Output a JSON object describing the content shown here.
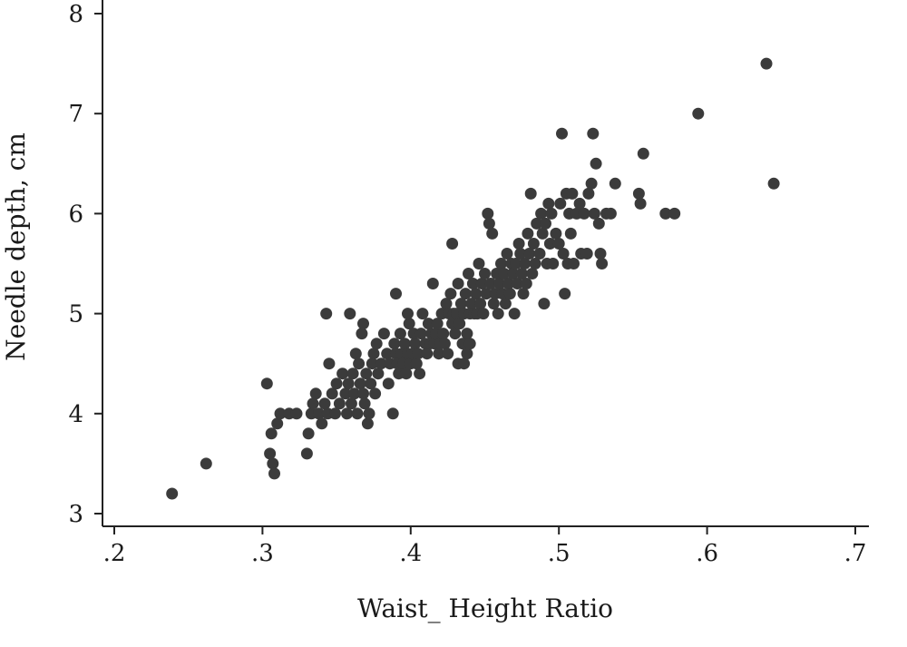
{
  "chart_data": {
    "type": "scatter",
    "title": "",
    "xlabel": "Waist_ Height Ratio",
    "ylabel": "Needle depth, cm",
    "xlim": [
      0.2,
      0.7
    ],
    "ylim": [
      3,
      8
    ],
    "grid": false,
    "point_color": "#3b3b3b",
    "x_ticks": [
      {
        "value": 0.2,
        "label": ".2"
      },
      {
        "value": 0.3,
        "label": ".3"
      },
      {
        "value": 0.4,
        "label": ".4"
      },
      {
        "value": 0.5,
        "label": ".5"
      },
      {
        "value": 0.6,
        "label": ".6"
      },
      {
        "value": 0.7,
        "label": ".7"
      }
    ],
    "y_ticks": [
      {
        "value": 3,
        "label": "3"
      },
      {
        "value": 4,
        "label": "4"
      },
      {
        "value": 5,
        "label": "5"
      },
      {
        "value": 6,
        "label": "6"
      },
      {
        "value": 7,
        "label": "7"
      },
      {
        "value": 8,
        "label": "8"
      }
    ],
    "points": [
      [
        0.239,
        3.2
      ],
      [
        0.262,
        3.5
      ],
      [
        0.303,
        4.3
      ],
      [
        0.305,
        3.6
      ],
      [
        0.306,
        3.8
      ],
      [
        0.307,
        3.5
      ],
      [
        0.308,
        3.4
      ],
      [
        0.31,
        3.9
      ],
      [
        0.312,
        4.0
      ],
      [
        0.318,
        4.0
      ],
      [
        0.323,
        4.0
      ],
      [
        0.33,
        3.6
      ],
      [
        0.331,
        3.8
      ],
      [
        0.333,
        4.0
      ],
      [
        0.334,
        4.1
      ],
      [
        0.336,
        4.2
      ],
      [
        0.338,
        4.0
      ],
      [
        0.34,
        3.9
      ],
      [
        0.342,
        4.1
      ],
      [
        0.344,
        4.0
      ],
      [
        0.345,
        4.5
      ],
      [
        0.343,
        5.0
      ],
      [
        0.347,
        4.2
      ],
      [
        0.349,
        4.0
      ],
      [
        0.35,
        4.3
      ],
      [
        0.352,
        4.1
      ],
      [
        0.354,
        4.4
      ],
      [
        0.356,
        4.2
      ],
      [
        0.357,
        4.0
      ],
      [
        0.358,
        4.3
      ],
      [
        0.36,
        4.1
      ],
      [
        0.361,
        4.4
      ],
      [
        0.362,
        4.2
      ],
      [
        0.363,
        4.6
      ],
      [
        0.364,
        4.0
      ],
      [
        0.365,
        4.5
      ],
      [
        0.366,
        4.3
      ],
      [
        0.367,
        4.8
      ],
      [
        0.368,
        4.2
      ],
      [
        0.369,
        4.1
      ],
      [
        0.37,
        4.4
      ],
      [
        0.371,
        3.9
      ],
      [
        0.372,
        4.0
      ],
      [
        0.373,
        4.3
      ],
      [
        0.374,
        4.5
      ],
      [
        0.375,
        4.6
      ],
      [
        0.376,
        4.2
      ],
      [
        0.377,
        4.7
      ],
      [
        0.378,
        4.4
      ],
      [
        0.359,
        5.0
      ],
      [
        0.368,
        4.9
      ],
      [
        0.38,
        4.5
      ],
      [
        0.382,
        4.8
      ],
      [
        0.384,
        4.6
      ],
      [
        0.385,
        4.3
      ],
      [
        0.386,
        4.5
      ],
      [
        0.388,
        4.0
      ],
      [
        0.389,
        4.7
      ],
      [
        0.39,
        4.6
      ],
      [
        0.391,
        4.5
      ],
      [
        0.392,
        4.4
      ],
      [
        0.393,
        4.8
      ],
      [
        0.394,
        4.6
      ],
      [
        0.395,
        4.5
      ],
      [
        0.396,
        4.7
      ],
      [
        0.397,
        4.4
      ],
      [
        0.398,
        4.6
      ],
      [
        0.399,
        4.9
      ],
      [
        0.4,
        4.5
      ],
      [
        0.401,
        4.6
      ],
      [
        0.402,
        4.8
      ],
      [
        0.403,
        4.7
      ],
      [
        0.404,
        4.5
      ],
      [
        0.405,
        4.6
      ],
      [
        0.406,
        4.4
      ],
      [
        0.407,
        4.8
      ],
      [
        0.408,
        5.0
      ],
      [
        0.39,
        5.2
      ],
      [
        0.398,
        5.0
      ],
      [
        0.41,
        4.7
      ],
      [
        0.411,
        4.6
      ],
      [
        0.412,
        4.9
      ],
      [
        0.413,
        4.7
      ],
      [
        0.414,
        4.8
      ],
      [
        0.415,
        5.3
      ],
      [
        0.416,
        4.7
      ],
      [
        0.417,
        4.8
      ],
      [
        0.418,
        4.9
      ],
      [
        0.419,
        4.6
      ],
      [
        0.42,
        4.7
      ],
      [
        0.421,
        5.0
      ],
      [
        0.422,
        4.8
      ],
      [
        0.423,
        4.7
      ],
      [
        0.424,
        5.1
      ],
      [
        0.425,
        4.6
      ],
      [
        0.426,
        5.0
      ],
      [
        0.427,
        5.2
      ],
      [
        0.428,
        4.9
      ],
      [
        0.429,
        5.0
      ],
      [
        0.43,
        4.8
      ],
      [
        0.431,
        5.0
      ],
      [
        0.432,
        5.3
      ],
      [
        0.433,
        4.9
      ],
      [
        0.434,
        5.1
      ],
      [
        0.435,
        4.7
      ],
      [
        0.436,
        5.0
      ],
      [
        0.437,
        5.2
      ],
      [
        0.438,
        4.8
      ],
      [
        0.439,
        5.4
      ],
      [
        0.44,
        5.0
      ],
      [
        0.441,
        5.1
      ],
      [
        0.442,
        5.3
      ],
      [
        0.443,
        5.0
      ],
      [
        0.444,
        5.2
      ],
      [
        0.445,
        5.0
      ],
      [
        0.446,
        5.5
      ],
      [
        0.447,
        5.1
      ],
      [
        0.448,
        5.3
      ],
      [
        0.449,
        5.0
      ],
      [
        0.428,
        5.7
      ],
      [
        0.432,
        4.5
      ],
      [
        0.436,
        4.5
      ],
      [
        0.438,
        4.6
      ],
      [
        0.44,
        4.7
      ],
      [
        0.45,
        5.4
      ],
      [
        0.451,
        5.2
      ],
      [
        0.452,
        6.0
      ],
      [
        0.453,
        5.9
      ],
      [
        0.454,
        5.3
      ],
      [
        0.455,
        5.8
      ],
      [
        0.456,
        5.1
      ],
      [
        0.457,
        5.2
      ],
      [
        0.458,
        5.4
      ],
      [
        0.459,
        5.0
      ],
      [
        0.46,
        5.3
      ],
      [
        0.461,
        5.5
      ],
      [
        0.462,
        5.2
      ],
      [
        0.463,
        5.4
      ],
      [
        0.464,
        5.1
      ],
      [
        0.465,
        5.6
      ],
      [
        0.466,
        5.3
      ],
      [
        0.467,
        5.2
      ],
      [
        0.468,
        5.5
      ],
      [
        0.469,
        5.4
      ],
      [
        0.47,
        5.0
      ],
      [
        0.471,
        5.5
      ],
      [
        0.472,
        5.3
      ],
      [
        0.473,
        5.7
      ],
      [
        0.474,
        5.6
      ],
      [
        0.475,
        5.4
      ],
      [
        0.476,
        5.2
      ],
      [
        0.477,
        5.5
      ],
      [
        0.478,
        5.3
      ],
      [
        0.479,
        5.8
      ],
      [
        0.48,
        5.6
      ],
      [
        0.481,
        6.2
      ],
      [
        0.482,
        5.4
      ],
      [
        0.483,
        5.7
      ],
      [
        0.484,
        5.5
      ],
      [
        0.485,
        5.9
      ],
      [
        0.487,
        5.6
      ],
      [
        0.488,
        6.0
      ],
      [
        0.489,
        5.8
      ],
      [
        0.49,
        5.1
      ],
      [
        0.491,
        5.9
      ],
      [
        0.492,
        5.5
      ],
      [
        0.493,
        6.1
      ],
      [
        0.494,
        5.7
      ],
      [
        0.495,
        6.0
      ],
      [
        0.496,
        5.5
      ],
      [
        0.498,
        5.8
      ],
      [
        0.5,
        5.7
      ],
      [
        0.501,
        6.1
      ],
      [
        0.502,
        6.8
      ],
      [
        0.503,
        5.6
      ],
      [
        0.504,
        5.2
      ],
      [
        0.505,
        6.2
      ],
      [
        0.506,
        5.5
      ],
      [
        0.507,
        6.0
      ],
      [
        0.508,
        5.8
      ],
      [
        0.509,
        6.2
      ],
      [
        0.51,
        5.5
      ],
      [
        0.512,
        6.0
      ],
      [
        0.514,
        6.1
      ],
      [
        0.515,
        5.6
      ],
      [
        0.517,
        6.0
      ],
      [
        0.519,
        5.6
      ],
      [
        0.52,
        6.2
      ],
      [
        0.522,
        6.3
      ],
      [
        0.523,
        6.8
      ],
      [
        0.524,
        6.0
      ],
      [
        0.525,
        6.5
      ],
      [
        0.527,
        5.9
      ],
      [
        0.528,
        5.6
      ],
      [
        0.529,
        5.5
      ],
      [
        0.532,
        6.0
      ],
      [
        0.535,
        6.0
      ],
      [
        0.538,
        6.3
      ],
      [
        0.554,
        6.2
      ],
      [
        0.555,
        6.1
      ],
      [
        0.557,
        6.6
      ],
      [
        0.572,
        6.0
      ],
      [
        0.578,
        6.0
      ],
      [
        0.594,
        7.0
      ],
      [
        0.64,
        7.5
      ],
      [
        0.645,
        6.3
      ]
    ]
  }
}
